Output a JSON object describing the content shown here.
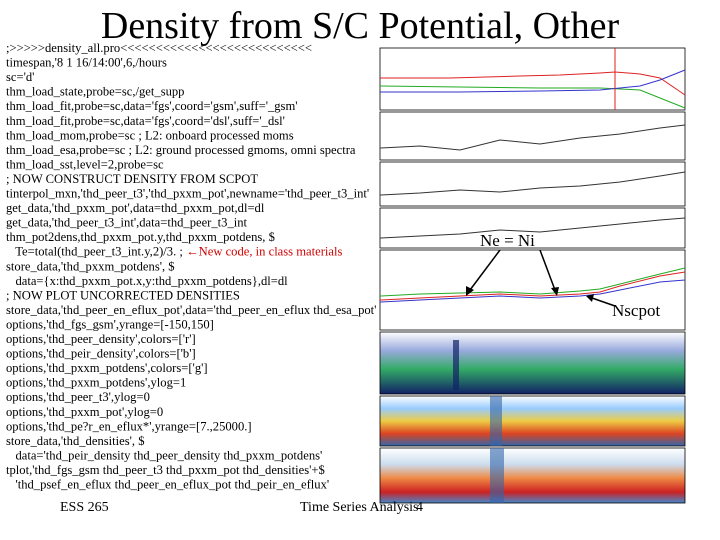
{
  "slide": {
    "title": "Density from S/C Potential, Other",
    "code": {
      "lines": [
        ";>>>>>density_all.pro<<<<<<<<<<<<<<<<<<<<<<<<<<<",
        "timespan,'8 1 16/14:00',6,/hours",
        "sc='d'",
        "thm_load_state,probe=sc,/get_supp",
        "thm_load_fit,probe=sc,data='fgs',coord='gsm',suff='_gsm'",
        "thm_load_fit,probe=sc,data='fgs',coord='dsl',suff='_dsl'",
        "thm_load_mom,probe=sc ; L2: onboard processed moms",
        "thm_load_esa,probe=sc ; L2: ground processed gmoms, omni spectra",
        "thm_load_sst,level=2,probe=sc",
        "; NOW CONSTRUCT DENSITY FROM SCPOT",
        "tinterpol_mxn,'thd_peer_t3','thd_pxxm_pot',newname='thd_peer_t3_int'",
        "get_data,'thd_pxxm_pot',data=thd_pxxm_pot,dl=dl",
        "get_data,'thd_peer_t3_int',data=thd_peer_t3_int",
        "thm_pot2dens,thd_pxxm_pot.y,thd_pxxm_potdens, $",
        "   Te=total(thd_peer_t3_int.y,2)/3. ; ",
        "store_data,'thd_pxxm_potdens', $",
        "   data={x:thd_pxxm_pot.x,y:thd_pxxm_potdens},dl=dl",
        "; NOW PLOT UNCORRECTED DENSITIES",
        "store_data,'thd_peer_en_eflux_pot',data='thd_peer_en_eflux thd_esa_pot'",
        "options,'thd_fgs_gsm',yrange=[-150,150]",
        "options,'thd_peer_density',colors=['r']",
        "options,'thd_peir_density',colors=['b']",
        "options,'thd_pxxm_potdens',colors=['g']",
        "options,'thd_pxxm_potdens',ylog=1",
        "options,'thd_peer_t3',ylog=0",
        "options,'thd_pxxm_pot',ylog=0",
        "options,'thd_pe?r_en_eflux*',yrange=[7.,25000.]",
        "store_data,'thd_densities', $",
        "   data='thd_peir_density thd_peer_density thd_pxxm_potdens'",
        "tplot,'thd_fgs_gsm thd_peer_t3 thd_pxxm_pot thd_densities'+$",
        "   'thd_psef_en_eflux thd_peer_en_eflux_pot thd_peir_en_eflux'"
      ],
      "note": "←New code, in class materials"
    },
    "annotations": {
      "ne_ni": "Ne = Ni",
      "nscpot": "Nscpot"
    },
    "footer": {
      "course": "ESS 265",
      "topic": "Time Series Analysis",
      "page": "4"
    }
  }
}
